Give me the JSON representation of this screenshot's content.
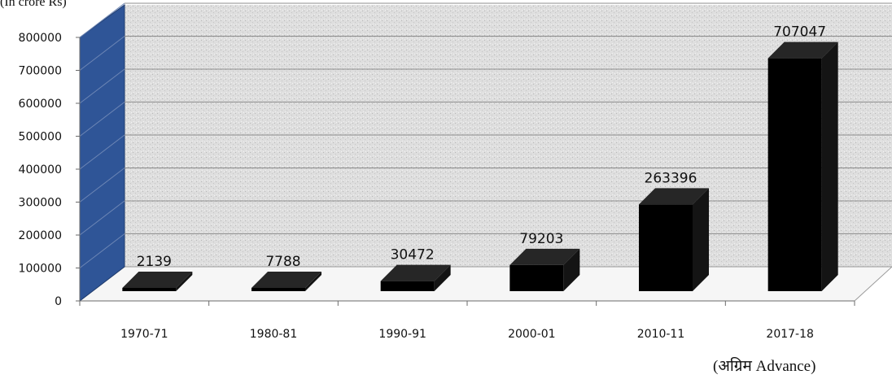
{
  "chart_data": {
    "type": "bar",
    "unit_label": "(In crore Rs)",
    "categories": [
      "1970-71",
      "1980-81",
      "1990-91",
      "2000-01",
      "2010-11",
      "2017-18"
    ],
    "values": [
      2139,
      7788,
      30472,
      79203,
      263396,
      707047
    ],
    "ylim": [
      0,
      800000
    ],
    "yticks": [
      0,
      100000,
      200000,
      300000,
      400000,
      500000,
      600000,
      700000,
      800000
    ],
    "ytick_labels": [
      "0",
      "100000",
      "200000",
      "300000",
      "400000",
      "500000",
      "600000",
      "700000",
      "800000"
    ],
    "annotation": "(अग्रिम Advance)",
    "grid": true,
    "colors": {
      "bar": "#000000",
      "side_wall": "#2f5597",
      "back_wall": "#d9d9d9",
      "grid": "#8c8c8c"
    }
  }
}
